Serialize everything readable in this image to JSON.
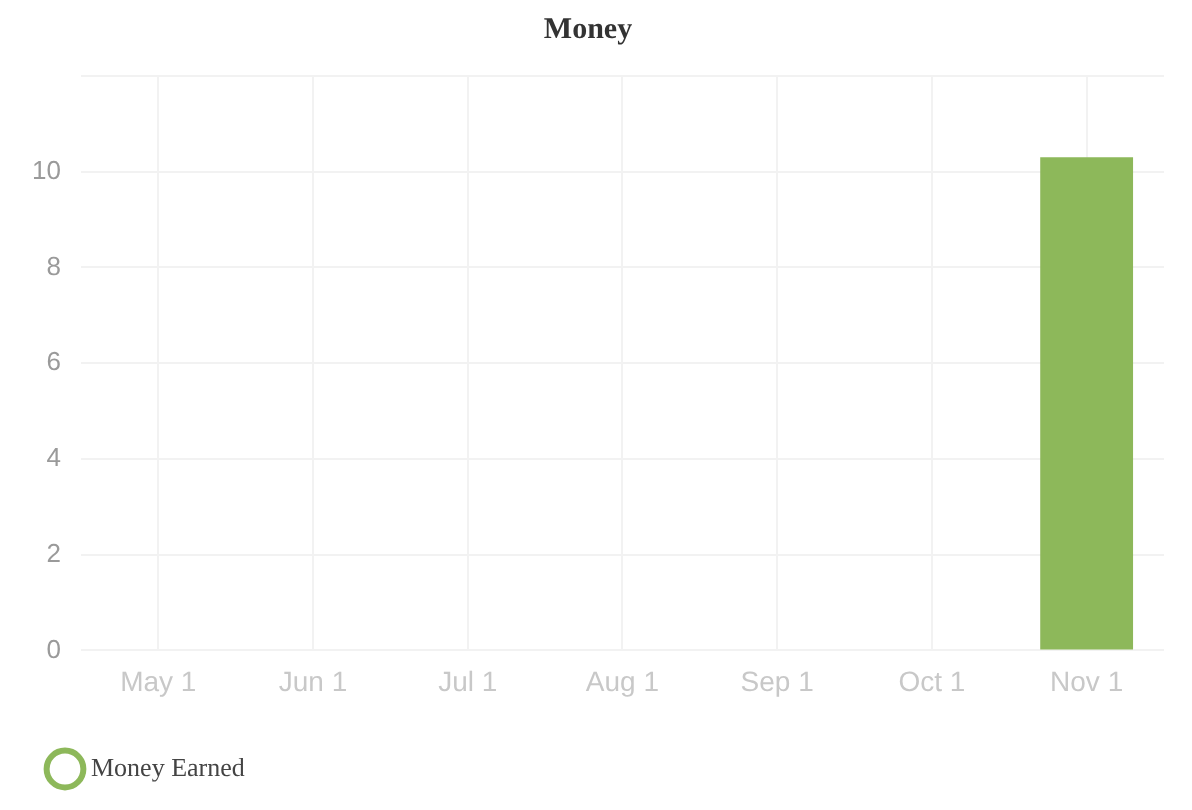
{
  "chart_data": {
    "type": "bar",
    "title": "Money",
    "categories": [
      "May 1",
      "Jun 1",
      "Jul 1",
      "Aug 1",
      "Sep 1",
      "Oct 1",
      "Nov 1"
    ],
    "series": [
      {
        "name": "Money Earned",
        "color": "#8db85a",
        "values": [
          0,
          0,
          0,
          0,
          0,
          0,
          10.3
        ]
      }
    ],
    "ylim": [
      0,
      12
    ],
    "yticks": [
      0,
      2,
      4,
      6,
      8,
      10,
      {
        "value": 12,
        "label": null
      }
    ],
    "grid": true,
    "legend": "bottom left",
    "marker": "circle"
  }
}
